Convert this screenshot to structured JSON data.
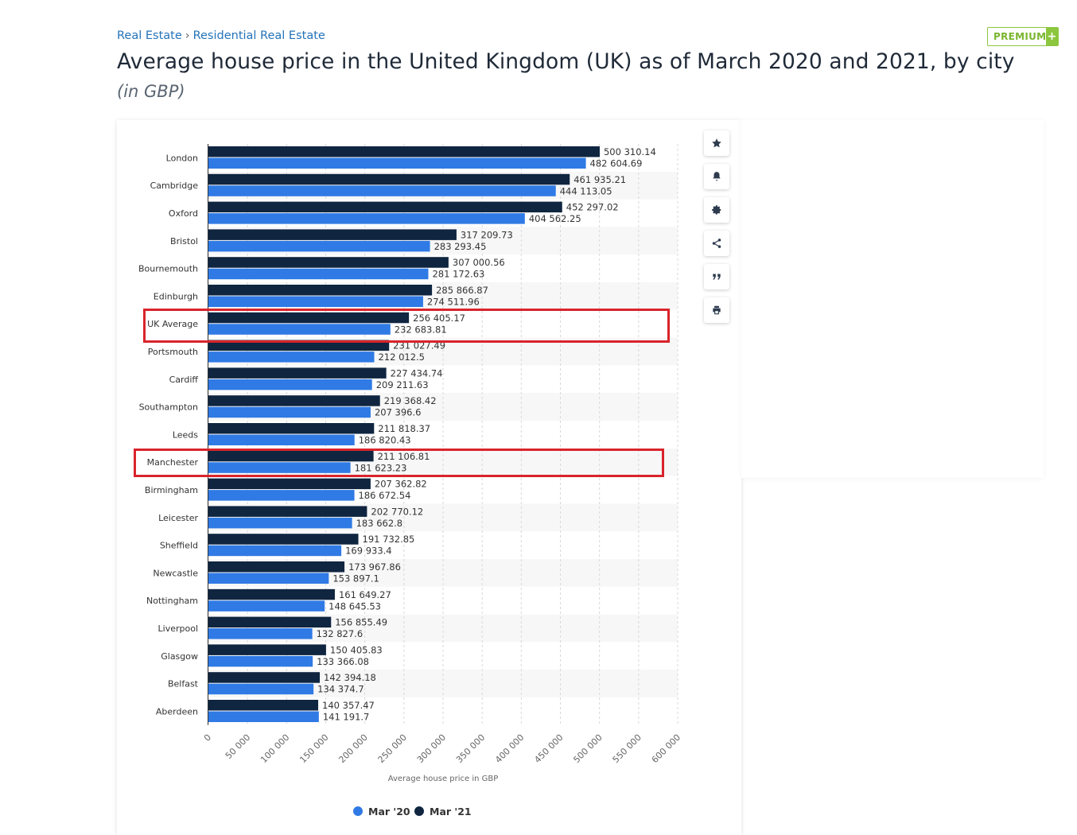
{
  "breadcrumb": {
    "items": [
      "Real Estate",
      "Residential Real Estate"
    ],
    "separator": "›"
  },
  "title": "Average house price in the United Kingdom (UK) as of March 2020 and 2021, by city",
  "subtitle": "(in GBP)",
  "premium": {
    "label": "PREMIUM",
    "plus": "+"
  },
  "tools": [
    "star-icon",
    "bell-icon",
    "gear-icon",
    "share-icon",
    "quote-icon",
    "print-icon"
  ],
  "colors": {
    "mar20": "#2f7ae5",
    "mar21": "#0f2540",
    "highlight": "#d9242b"
  },
  "chart_data": {
    "type": "bar",
    "orientation": "horizontal",
    "categories": [
      "London",
      "Cambridge",
      "Oxford",
      "Bristol",
      "Bournemouth",
      "Edinburgh",
      "UK Average",
      "Portsmouth",
      "Cardiff",
      "Southampton",
      "Leeds",
      "Manchester",
      "Birmingham",
      "Leicester",
      "Sheffield",
      "Newcastle",
      "Nottingham",
      "Liverpool",
      "Glasgow",
      "Belfast",
      "Aberdeen"
    ],
    "series": [
      {
        "name": "Mar '21",
        "color": "#0f2540",
        "values": [
          500310.14,
          461935.21,
          452297.02,
          317209.73,
          307000.56,
          285866.87,
          256405.17,
          231027.49,
          227434.74,
          219368.42,
          211818.37,
          211106.81,
          207362.82,
          202770.12,
          191732.85,
          173967.86,
          161649.27,
          156855.49,
          150405.83,
          142394.18,
          140357.47
        ],
        "labels": [
          "500 310.14",
          "461 935.21",
          "452 297.02",
          "317 209.73",
          "307 000.56",
          "285 866.87",
          "256 405.17",
          "231 027.49",
          "227 434.74",
          "219 368.42",
          "211 818.37",
          "211 106.81",
          "207 362.82",
          "202 770.12",
          "191 732.85",
          "173 967.86",
          "161 649.27",
          "156 855.49",
          "150 405.83",
          "142 394.18",
          "140 357.47"
        ]
      },
      {
        "name": "Mar '20",
        "color": "#2f7ae5",
        "values": [
          482604.69,
          444113.05,
          404562.25,
          283293.45,
          281172.63,
          274511.96,
          232683.81,
          212012.5,
          209211.63,
          207396.6,
          186820.43,
          181623.23,
          186672.54,
          183662.8,
          169933.4,
          153897.1,
          148645.53,
          132827.6,
          133366.08,
          134374.7,
          141191.7
        ],
        "labels": [
          "482 604.69",
          "444 113.05",
          "404 562.25",
          "283 293.45",
          "281 172.63",
          "274 511.96",
          "232 683.81",
          "212 012.5",
          "209 211.63",
          "207 396.6",
          "186 820.43",
          "181 623.23",
          "186 672.54",
          "183 662.8",
          "169 933.4",
          "153 897.1",
          "148 645.53",
          "132 827.6",
          "133 366.08",
          "134 374.7",
          "141 191.7"
        ]
      }
    ],
    "legend_order": [
      "Mar '20",
      "Mar '21"
    ],
    "xlim": [
      0,
      600000
    ],
    "x_ticks": [
      0,
      50000,
      100000,
      150000,
      200000,
      250000,
      300000,
      350000,
      400000,
      450000,
      500000,
      550000,
      600000
    ],
    "x_tick_labels": [
      "0",
      "50 000",
      "100 000",
      "150 000",
      "200 000",
      "250 000",
      "300 000",
      "350 000",
      "400 000",
      "450 000",
      "500 000",
      "550 000",
      "600 000"
    ],
    "xlabel": "Average house price in GBP",
    "legend_position": "bottom",
    "highlighted_categories": [
      "UK Average",
      "Manchester"
    ]
  }
}
